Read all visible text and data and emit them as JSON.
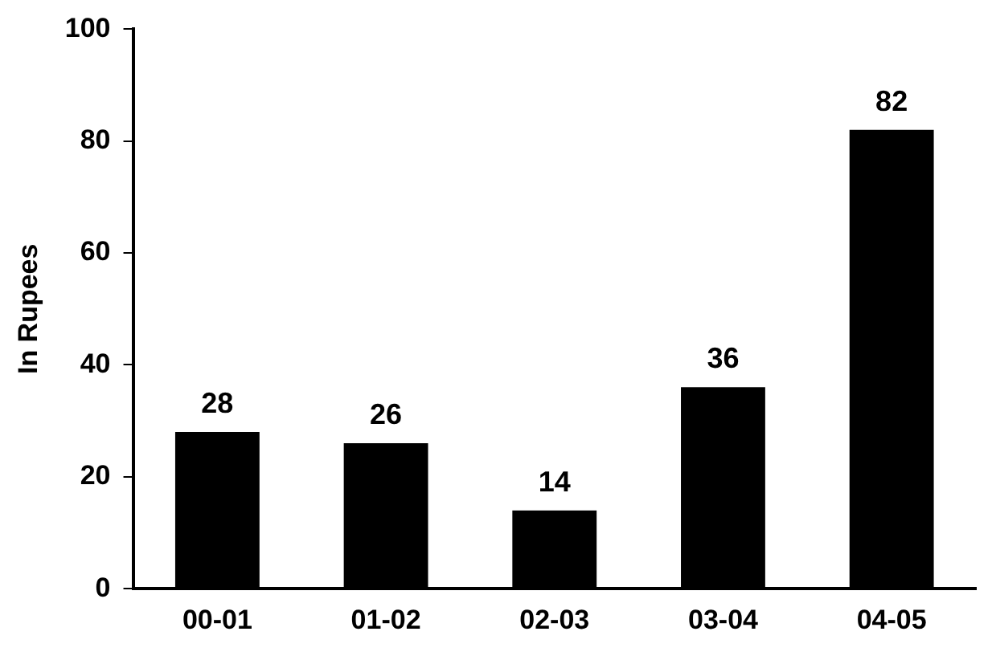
{
  "chart_data": {
    "type": "bar",
    "ylabel": "In Rupees",
    "categories": [
      "00-01",
      "01-02",
      "02-03",
      "03-04",
      "04-05"
    ],
    "values": [
      28,
      26,
      14,
      36,
      82
    ],
    "color": "#000000",
    "ylim": [
      0,
      100
    ],
    "yticks": [
      0,
      20,
      40,
      60,
      80,
      100
    ],
    "grid": false,
    "legend": false,
    "data_labels": true
  }
}
